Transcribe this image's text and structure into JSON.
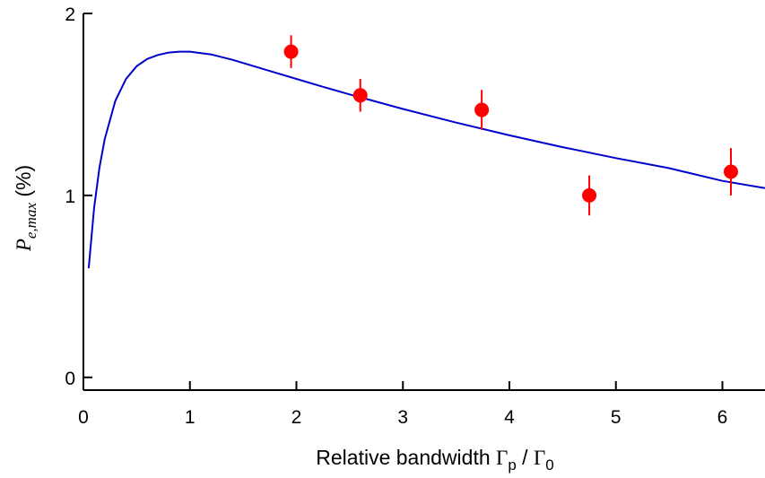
{
  "chart_data": {
    "type": "scatter",
    "xlabel": {
      "prefix": "Relative bandwidth ",
      "num_symbol": "Γ",
      "num_sub": "p",
      "separator": " / ",
      "den_symbol": "Γ",
      "den_sub": "0"
    },
    "ylabel": {
      "symbol": "P",
      "sub": "e,max",
      "unit": " (%)"
    },
    "xlim": [
      0,
      6.4
    ],
    "ylim": [
      -0.07,
      2.0
    ],
    "x_ticks": [
      0,
      1,
      2,
      3,
      4,
      5,
      6
    ],
    "y_ticks": [
      0,
      1,
      2
    ],
    "grid": false,
    "series": [
      {
        "kind": "curve",
        "color": "#0000cc",
        "x": [
          0.05,
          0.1,
          0.15,
          0.2,
          0.3,
          0.4,
          0.5,
          0.6,
          0.7,
          0.8,
          0.9,
          1.0,
          1.2,
          1.4,
          1.6,
          1.8,
          2.0,
          2.25,
          2.5,
          2.75,
          3.0,
          3.5,
          4.0,
          4.5,
          5.0,
          5.5,
          6.0,
          6.4
        ],
        "y": [
          0.6,
          0.93,
          1.15,
          1.31,
          1.52,
          1.64,
          1.71,
          1.75,
          1.772,
          1.785,
          1.79,
          1.79,
          1.775,
          1.745,
          1.71,
          1.675,
          1.64,
          1.597,
          1.555,
          1.515,
          1.475,
          1.4,
          1.33,
          1.265,
          1.205,
          1.15,
          1.08,
          1.04
        ]
      },
      {
        "kind": "points",
        "color": "#ff0000",
        "x": [
          1.95,
          2.6,
          3.74,
          4.75,
          6.08
        ],
        "y": [
          1.79,
          1.55,
          1.47,
          1.0,
          1.13
        ],
        "err": [
          0.09,
          0.09,
          0.11,
          0.11,
          0.13
        ]
      }
    ]
  }
}
